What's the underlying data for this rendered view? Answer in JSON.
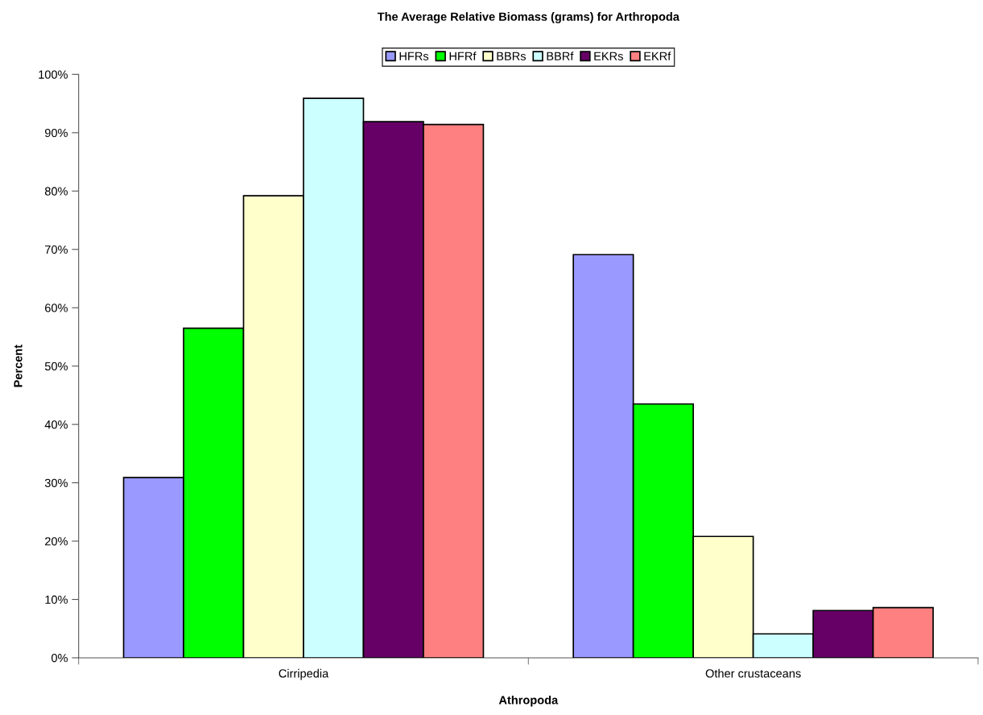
{
  "chart_data": {
    "type": "bar",
    "title": "The Average Relative Biomass (grams) for Arthropoda",
    "xlabel": "Athropoda",
    "ylabel": "Percent",
    "categories": [
      "Cirripedia",
      "Other crustaceans"
    ],
    "series": [
      {
        "name": "HFRs",
        "color": "#9999ff",
        "values": [
          30.9,
          69.1
        ]
      },
      {
        "name": "HFRf",
        "color": "#00ff00",
        "values": [
          56.5,
          43.5
        ]
      },
      {
        "name": "BBRs",
        "color": "#ffffcc",
        "values": [
          79.2,
          20.8
        ]
      },
      {
        "name": "BBRf",
        "color": "#ccffff",
        "values": [
          95.9,
          4.1
        ]
      },
      {
        "name": "EKRs",
        "color": "#660066",
        "values": [
          91.9,
          8.1
        ]
      },
      {
        "name": "EKRf",
        "color": "#ff8080",
        "values": [
          91.4,
          8.6
        ]
      }
    ],
    "ylim": [
      0,
      100
    ],
    "yticks": [
      {
        "value": 0,
        "label": "0%"
      },
      {
        "value": 10,
        "label": "10%"
      },
      {
        "value": 20,
        "label": "20%"
      },
      {
        "value": 30,
        "label": "30%"
      },
      {
        "value": 40,
        "label": "40%"
      },
      {
        "value": 50,
        "label": "50%"
      },
      {
        "value": 60,
        "label": "60%"
      },
      {
        "value": 70,
        "label": "70%"
      },
      {
        "value": 80,
        "label": "80%"
      },
      {
        "value": 90,
        "label": "90%"
      },
      {
        "value": 100,
        "label": "100%"
      }
    ],
    "grid": false,
    "legend": "top"
  }
}
